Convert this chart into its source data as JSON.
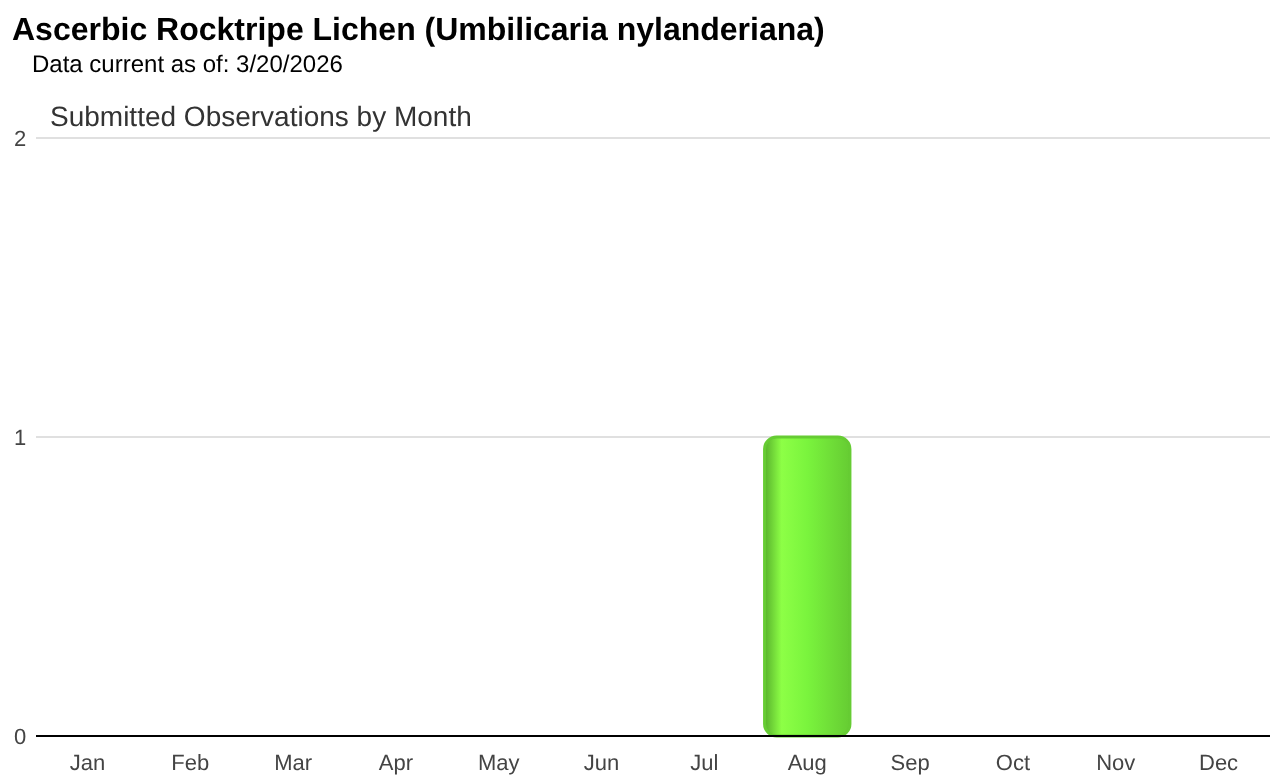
{
  "chart_data": {
    "type": "bar",
    "title": "Ascerbic Rocktripe Lichen   (Umbilicaria nylanderiana)",
    "subtitle": "Data current as of: 3/20/2026",
    "annotations": [
      "Submitted Observations by Month"
    ],
    "categories": [
      "Jan",
      "Feb",
      "Mar",
      "Apr",
      "May",
      "Jun",
      "Jul",
      "Aug",
      "Sep",
      "Oct",
      "Nov",
      "Dec"
    ],
    "values": [
      0,
      0,
      0,
      0,
      0,
      0,
      0,
      1,
      0,
      0,
      0,
      0
    ],
    "color": "#66cc33",
    "ylim": [
      0,
      2
    ],
    "yticks": [
      0,
      1,
      2
    ],
    "grid": "y"
  }
}
